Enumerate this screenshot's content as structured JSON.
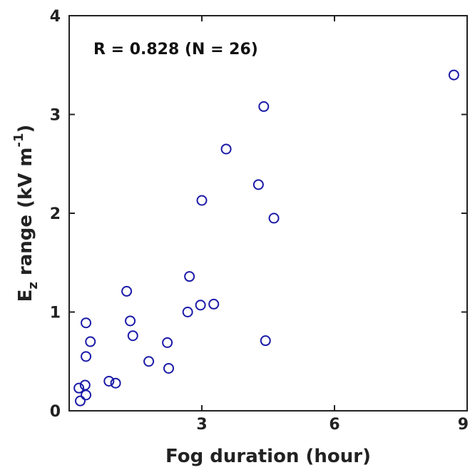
{
  "chart_data": {
    "type": "scatter",
    "annotation": "R = 0.828 (N = 26)",
    "xlabel": "Fog duration (hour)",
    "ylabel": {
      "base": "E",
      "sub": "z",
      "text": " range (kV m",
      "sup": "-1",
      "close": ")"
    },
    "xlim": [
      0,
      9
    ],
    "ylim": [
      0,
      4
    ],
    "xticks": [
      3,
      6,
      9
    ],
    "yticks": [
      0,
      1,
      2,
      3,
      4
    ],
    "grid": false,
    "marker_color": "#1a1aa8",
    "points": [
      {
        "x": 0.25,
        "y": 0.1
      },
      {
        "x": 0.22,
        "y": 0.23
      },
      {
        "x": 0.38,
        "y": 0.16
      },
      {
        "x": 0.36,
        "y": 0.26
      },
      {
        "x": 0.38,
        "y": 0.55
      },
      {
        "x": 0.38,
        "y": 0.89
      },
      {
        "x": 0.48,
        "y": 0.7
      },
      {
        "x": 0.9,
        "y": 0.3
      },
      {
        "x": 1.05,
        "y": 0.28
      },
      {
        "x": 1.3,
        "y": 1.21
      },
      {
        "x": 1.38,
        "y": 0.91
      },
      {
        "x": 1.44,
        "y": 0.76
      },
      {
        "x": 1.8,
        "y": 0.5
      },
      {
        "x": 2.22,
        "y": 0.69
      },
      {
        "x": 2.25,
        "y": 0.43
      },
      {
        "x": 2.68,
        "y": 1.0
      },
      {
        "x": 2.72,
        "y": 1.36
      },
      {
        "x": 2.97,
        "y": 1.07
      },
      {
        "x": 3.0,
        "y": 2.13
      },
      {
        "x": 3.27,
        "y": 1.08
      },
      {
        "x": 3.55,
        "y": 2.65
      },
      {
        "x": 4.28,
        "y": 2.29
      },
      {
        "x": 4.4,
        "y": 3.08
      },
      {
        "x": 4.44,
        "y": 0.71
      },
      {
        "x": 4.63,
        "y": 1.95
      },
      {
        "x": 8.7,
        "y": 3.4
      }
    ]
  }
}
